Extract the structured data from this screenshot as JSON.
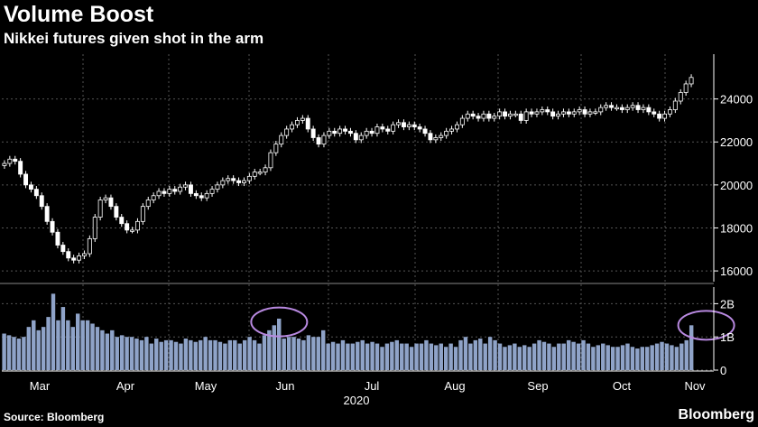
{
  "header": {
    "title": "Volume Boost",
    "subtitle": "Nikkei futures given shot in the arm"
  },
  "footer": {
    "source": "Source: Bloomberg",
    "brand": "Bloomberg"
  },
  "colors": {
    "background": "#000000",
    "volume_bar": "#8fa3c8",
    "highlight": "#b889e0",
    "grid": "#555555"
  },
  "chart_data": [
    {
      "type": "candlestick",
      "ylim": [
        15500,
        26000
      ],
      "yticks": [
        16000,
        18000,
        20000,
        22000,
        24000
      ],
      "ytick_labels": [
        "16000",
        "18000",
        "20000",
        "22000",
        "24000"
      ],
      "grid": true,
      "approx_daily_close": [
        21000,
        21200,
        21100,
        20500,
        20000,
        19800,
        19500,
        19000,
        18300,
        17800,
        17200,
        16900,
        16600,
        16500,
        16700,
        16800,
        17500,
        18500,
        19300,
        19400,
        19000,
        18500,
        18200,
        17900,
        17900,
        18300,
        19000,
        19300,
        19500,
        19700,
        19600,
        19800,
        19700,
        19900,
        20000,
        19600,
        19500,
        19400,
        19600,
        19800,
        20000,
        20200,
        20300,
        20200,
        20100,
        20200,
        20400,
        20600,
        20600,
        20800,
        21500,
        21900,
        22300,
        22600,
        22800,
        23000,
        23100,
        22600,
        22200,
        21900,
        22300,
        22500,
        22400,
        22600,
        22500,
        22400,
        22100,
        22300,
        22500,
        22400,
        22700,
        22600,
        22500,
        22800,
        22900,
        22700,
        22800,
        22700,
        22600,
        22400,
        22100,
        22200,
        22300,
        22500,
        22600,
        22800,
        23100,
        23300,
        23200,
        23100,
        23300,
        23100,
        23200,
        23400,
        23200,
        23300,
        23300,
        23000,
        23400,
        23300,
        23400,
        23500,
        23400,
        23200,
        23300,
        23400,
        23300,
        23400,
        23500,
        23300,
        23400,
        23400,
        23600,
        23700,
        23600,
        23600,
        23500,
        23600,
        23700,
        23500,
        23600,
        23400,
        23300,
        23100,
        23300,
        23500,
        23900,
        24300,
        24700,
        25000
      ]
    },
    {
      "type": "bar",
      "ylim": [
        0,
        2.5
      ],
      "yticks": [
        0,
        1,
        2
      ],
      "ytick_labels": [
        "0",
        "1B",
        "2B"
      ],
      "xlabel": "2020",
      "x_tick_labels": [
        "Mar",
        "Apr",
        "May",
        "Jun",
        "Jul",
        "Aug",
        "Sep",
        "Oct",
        "Nov"
      ],
      "grid": true,
      "values": [
        1.1,
        1.05,
        1.0,
        0.95,
        1.0,
        1.3,
        1.5,
        1.2,
        1.3,
        1.6,
        2.3,
        1.5,
        1.9,
        1.5,
        1.3,
        1.7,
        1.5,
        1.5,
        1.4,
        1.3,
        1.2,
        1.1,
        1.2,
        1.0,
        1.05,
        1.0,
        1.0,
        0.95,
        0.9,
        1.0,
        0.8,
        0.95,
        0.85,
        0.9,
        0.9,
        0.85,
        0.8,
        0.95,
        0.9,
        0.85,
        0.9,
        1.0,
        0.9,
        0.9,
        0.85,
        0.8,
        0.9,
        0.9,
        0.8,
        0.9,
        1.0,
        0.9,
        0.8,
        1.05,
        1.2,
        1.35,
        1.55,
        0.95,
        1.0,
        1.0,
        0.95,
        0.9,
        1.05,
        1.0,
        1.0,
        1.2,
        0.8,
        0.85,
        0.8,
        0.9,
        0.8,
        0.8,
        0.85,
        0.9,
        0.8,
        0.85,
        0.8,
        0.7,
        0.8,
        0.85,
        0.9,
        0.8,
        0.8,
        0.7,
        0.8,
        0.8,
        0.9,
        0.8,
        0.75,
        0.8,
        0.7,
        0.8,
        0.7,
        0.9,
        1.0,
        0.8,
        0.9,
        0.95,
        0.8,
        1.0,
        0.9,
        0.8,
        0.7,
        0.75,
        0.8,
        0.7,
        0.75,
        0.7,
        0.8,
        0.9,
        0.85,
        0.8,
        0.7,
        0.8,
        0.8,
        0.9,
        0.85,
        0.8,
        0.9,
        0.8,
        0.7,
        0.75,
        0.8,
        0.75,
        0.7,
        0.7,
        0.75,
        0.8,
        0.7,
        0.65,
        0.7,
        0.7,
        0.75,
        0.8,
        0.85,
        0.8,
        0.75,
        0.7,
        0.8,
        0.9,
        1.35
      ],
      "annotations": [
        {
          "type": "ellipse",
          "x_index": 56,
          "y": 1.45
        },
        {
          "type": "ellipse",
          "x_index": 143,
          "y": 1.35
        }
      ]
    }
  ]
}
